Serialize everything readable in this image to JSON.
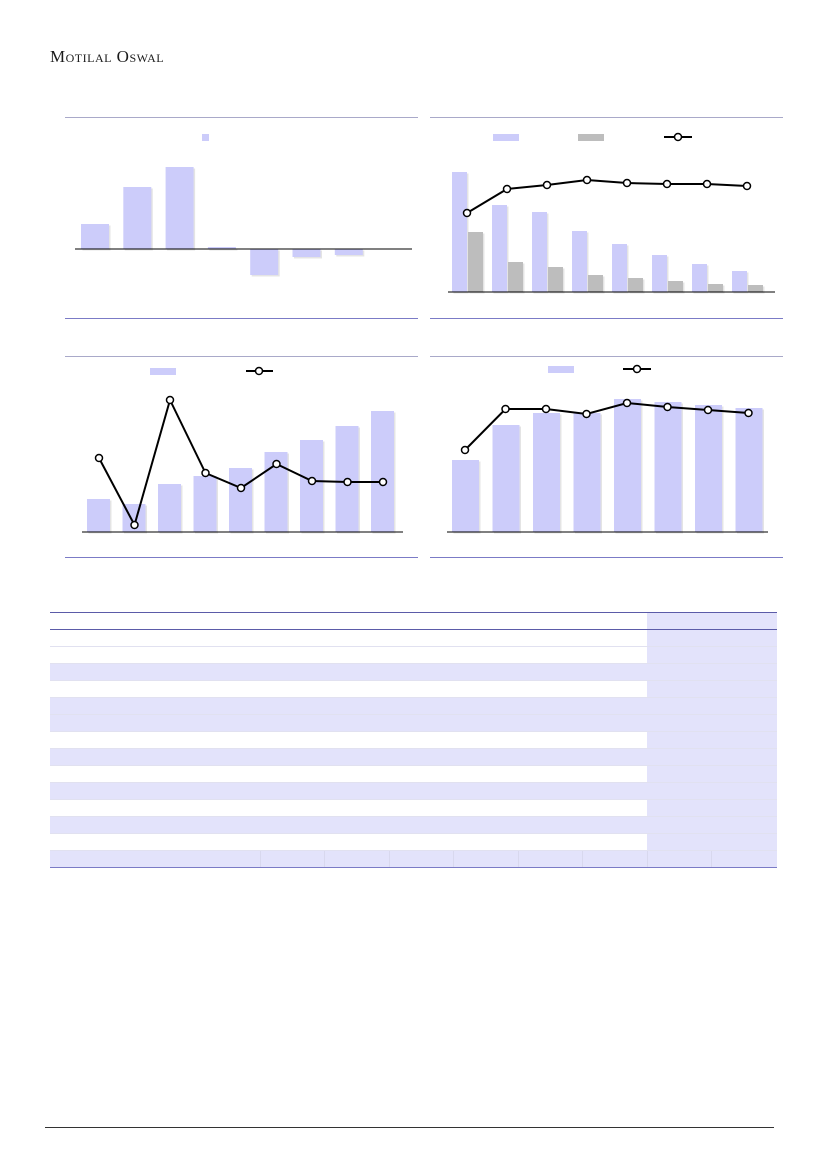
{
  "header": {
    "brand": "Motilal Oswal"
  },
  "charts": {
    "colors": {
      "bar": "#ccccfa",
      "bar_grey": "#bdbdbd",
      "line": "#000000",
      "axis": "#000000"
    },
    "chart1": {
      "type": "bar",
      "values": [
        25,
        62,
        82,
        2,
        -26,
        -8,
        -6
      ]
    },
    "chart2": {
      "type": "bar+line",
      "bars_a": [
        120,
        87,
        80,
        61,
        48,
        37,
        28,
        21
      ],
      "bars_b": [
        60,
        30,
        25,
        17,
        14,
        11,
        8,
        7
      ],
      "line": [
        79,
        103,
        107,
        112,
        109,
        108,
        108,
        106
      ]
    },
    "chart3": {
      "type": "bar+line",
      "bars": [
        33,
        28,
        48,
        56,
        64,
        80,
        92,
        106,
        121
      ],
      "line": [
        73,
        6,
        131,
        58,
        43,
        67,
        50,
        49,
        49
      ]
    },
    "chart4": {
      "type": "bar+line",
      "bars": [
        72,
        107,
        119,
        119,
        133,
        130,
        127,
        124
      ],
      "line": [
        82,
        123,
        123,
        118,
        129,
        125,
        122,
        119
      ]
    }
  },
  "table": {
    "rows": 14
  }
}
